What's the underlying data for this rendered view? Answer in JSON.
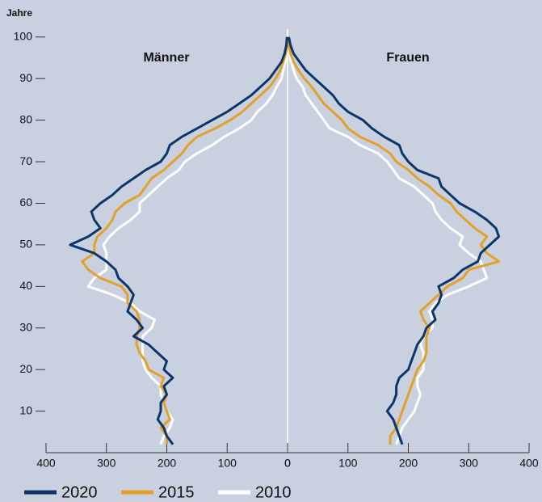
{
  "chart_data": {
    "type": "pyramid",
    "ylabel": "Jahre",
    "left_label": "Männer",
    "right_label": "Frauen",
    "y": [
      2,
      4,
      6,
      8,
      10,
      12,
      14,
      16,
      18,
      20,
      22,
      24,
      26,
      28,
      30,
      32,
      34,
      36,
      38,
      40,
      42,
      44,
      46,
      48,
      50,
      52,
      54,
      56,
      58,
      60,
      62,
      64,
      66,
      68,
      70,
      72,
      74,
      76,
      78,
      80,
      82,
      84,
      86,
      88,
      90,
      92,
      94,
      96,
      98,
      100
    ],
    "ylim": [
      0,
      102
    ],
    "yticks": [
      10,
      20,
      30,
      40,
      50,
      60,
      70,
      80,
      90,
      100
    ],
    "xlim": [
      0,
      400
    ],
    "xticks": [
      0,
      100,
      200,
      300,
      400
    ],
    "series": [
      {
        "name": "2020",
        "color": "#0c3669",
        "men": [
          190,
          200,
          205,
          215,
          210,
          210,
          200,
          205,
          190,
          205,
          200,
          215,
          230,
          255,
          240,
          250,
          265,
          260,
          255,
          265,
          280,
          285,
          300,
          320,
          360,
          330,
          310,
          320,
          325,
          310,
          290,
          275,
          255,
          235,
          210,
          200,
          195,
          175,
          150,
          125,
          100,
          80,
          60,
          45,
          30,
          20,
          10,
          5,
          2,
          1
        ],
        "women": [
          190,
          185,
          180,
          175,
          165,
          175,
          180,
          180,
          185,
          200,
          205,
          210,
          215,
          225,
          230,
          245,
          240,
          250,
          255,
          250,
          275,
          290,
          315,
          320,
          335,
          350,
          345,
          330,
          310,
          285,
          270,
          255,
          250,
          215,
          200,
          190,
          185,
          160,
          140,
          125,
          100,
          85,
          75,
          60,
          45,
          30,
          20,
          10,
          5,
          2
        ]
      },
      {
        "name": "2015",
        "color": "#e3a127",
        "men": [
          200,
          200,
          210,
          195,
          200,
          205,
          200,
          210,
          205,
          230,
          235,
          245,
          250,
          250,
          245,
          245,
          250,
          265,
          265,
          275,
          310,
          330,
          340,
          320,
          320,
          315,
          300,
          290,
          285,
          270,
          245,
          235,
          225,
          205,
          190,
          175,
          165,
          150,
          120,
          95,
          75,
          60,
          45,
          30,
          20,
          12,
          7,
          3,
          1,
          0
        ],
        "women": [
          170,
          170,
          180,
          185,
          190,
          195,
          200,
          205,
          210,
          215,
          225,
          230,
          230,
          230,
          235,
          225,
          220,
          235,
          250,
          265,
          290,
          300,
          350,
          330,
          320,
          330,
          310,
          295,
          280,
          270,
          250,
          235,
          215,
          200,
          180,
          170,
          150,
          120,
          100,
          90,
          75,
          60,
          50,
          40,
          28,
          18,
          10,
          5,
          2,
          1
        ]
      },
      {
        "name": "2010",
        "color": "#ffffff",
        "men": [
          210,
          205,
          195,
          190,
          200,
          205,
          210,
          210,
          225,
          235,
          240,
          240,
          240,
          240,
          225,
          220,
          245,
          260,
          290,
          330,
          320,
          300,
          300,
          300,
          305,
          295,
          280,
          260,
          245,
          245,
          230,
          215,
          200,
          180,
          170,
          150,
          125,
          105,
          80,
          60,
          50,
          35,
          25,
          18,
          10,
          7,
          4,
          2,
          1,
          0
        ],
        "women": [
          180,
          185,
          190,
          200,
          210,
          215,
          220,
          215,
          215,
          225,
          225,
          225,
          220,
          225,
          240,
          240,
          235,
          245,
          265,
          300,
          330,
          325,
          320,
          300,
          285,
          290,
          270,
          255,
          245,
          240,
          225,
          210,
          185,
          175,
          165,
          150,
          120,
          100,
          70,
          60,
          50,
          40,
          30,
          25,
          15,
          10,
          6,
          3,
          1,
          0
        ]
      }
    ]
  }
}
